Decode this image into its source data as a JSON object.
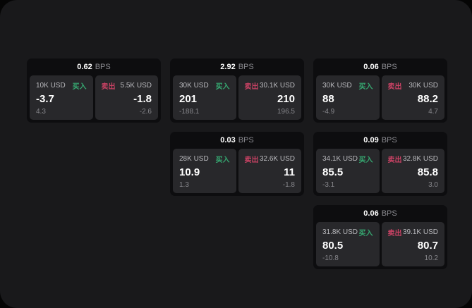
{
  "labels": {
    "bps_unit": "BPS",
    "buy": "买入",
    "sell": "卖出"
  },
  "colors": {
    "buy_accent": "#36a871",
    "sell_accent": "#c94264",
    "page_background": "#19191b",
    "card_background": "#0d0d0f",
    "panel_background": "#28282b"
  },
  "cards": [
    {
      "grid": {
        "row": 1,
        "col": 1
      },
      "bps": "0.62",
      "buy": {
        "size": "10K USD",
        "value": "-3.7",
        "sub": "4.3"
      },
      "sell": {
        "size": "5.5K USD",
        "value": "-1.8",
        "sub": "-2.6"
      }
    },
    {
      "grid": {
        "row": 1,
        "col": 2
      },
      "bps": "2.92",
      "buy": {
        "size": "30K USD",
        "value": "201",
        "sub": "-188.1"
      },
      "sell": {
        "size": "30.1K USD",
        "value": "210",
        "sub": "196.5"
      }
    },
    {
      "grid": {
        "row": 1,
        "col": 3
      },
      "bps": "0.06",
      "buy": {
        "size": "30K USD",
        "value": "88",
        "sub": "-4.9"
      },
      "sell": {
        "size": "30K USD",
        "value": "88.2",
        "sub": "4.7"
      }
    },
    {
      "grid": {
        "row": 2,
        "col": 2
      },
      "bps": "0.03",
      "buy": {
        "size": "28K USD",
        "value": "10.9",
        "sub": "1.3"
      },
      "sell": {
        "size": "32.6K USD",
        "value": "11",
        "sub": "-1.8"
      }
    },
    {
      "grid": {
        "row": 2,
        "col": 3
      },
      "bps": "0.09",
      "buy": {
        "size": "34.1K USD",
        "value": "85.5",
        "sub": "-3.1"
      },
      "sell": {
        "size": "32.8K USD",
        "value": "85.8",
        "sub": "3.0"
      }
    },
    {
      "grid": {
        "row": 3,
        "col": 3
      },
      "bps": "0.06",
      "buy": {
        "size": "31.8K USD",
        "value": "80.5",
        "sub": "-10.8"
      },
      "sell": {
        "size": "39.1K USD",
        "value": "80.7",
        "sub": "10.2"
      }
    }
  ]
}
